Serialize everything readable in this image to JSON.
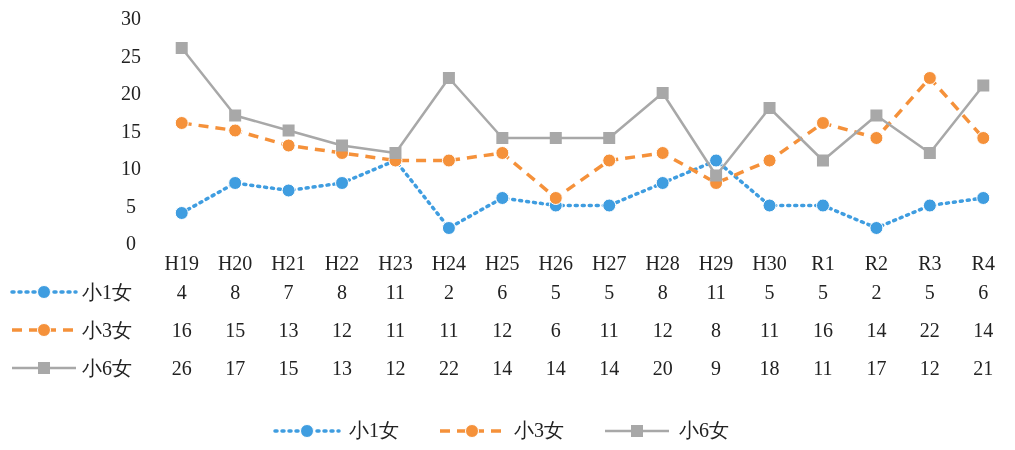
{
  "chart_data": {
    "type": "line",
    "categories": [
      "H19",
      "H20",
      "H21",
      "H22",
      "H23",
      "H24",
      "H25",
      "H26",
      "H27",
      "H28",
      "H29",
      "H30",
      "R1",
      "R2",
      "R3",
      "R4"
    ],
    "series": [
      {
        "name": "小1女",
        "color": "#3f9de0",
        "marker": "circle",
        "line_style": "dotted",
        "values": [
          4,
          8,
          7,
          8,
          11,
          2,
          6,
          5,
          5,
          8,
          11,
          5,
          5,
          2,
          5,
          6
        ]
      },
      {
        "name": "小3女",
        "color": "#f5913a",
        "marker": "circle",
        "line_style": "dashed",
        "values": [
          16,
          15,
          13,
          12,
          11,
          11,
          12,
          6,
          11,
          12,
          8,
          11,
          16,
          14,
          22,
          14
        ]
      },
      {
        "name": "小6女",
        "color": "#a8a8a8",
        "marker": "square",
        "line_style": "solid",
        "values": [
          26,
          17,
          15,
          13,
          12,
          22,
          14,
          14,
          14,
          20,
          9,
          18,
          11,
          17,
          12,
          21
        ]
      }
    ],
    "ylim": [
      0,
      30
    ],
    "yticks": [
      0,
      5,
      10,
      15,
      20,
      25,
      30
    ],
    "grid": false,
    "data_labels": true,
    "legend": "bottom"
  }
}
